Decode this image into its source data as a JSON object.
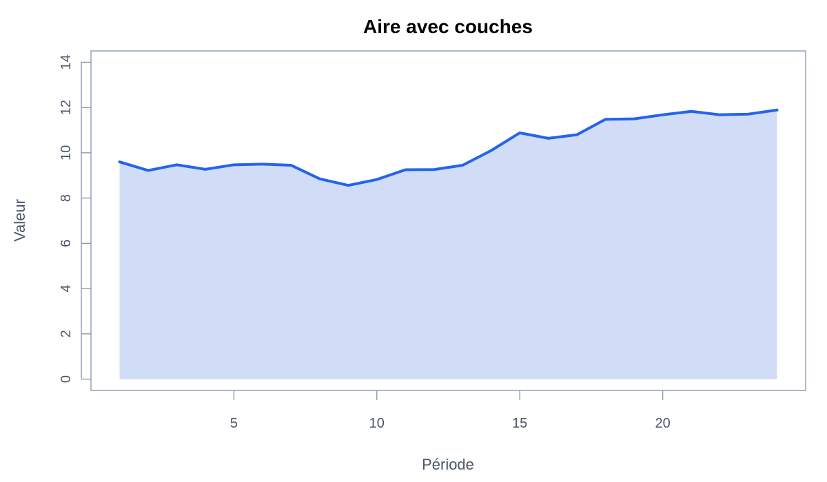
{
  "chart_data": {
    "type": "area",
    "title": "Aire avec couches",
    "xlabel": "Période",
    "ylabel": "Valeur",
    "xlim": [
      0,
      25
    ],
    "ylim": [
      -0.5,
      14.5
    ],
    "x_ticks": [
      5,
      10,
      15,
      20
    ],
    "y_ticks": [
      0,
      2,
      4,
      6,
      8,
      10,
      12,
      14
    ],
    "grid": false,
    "legend": "none",
    "colors": {
      "line": "#2563eb",
      "fill": "#d1dcf7",
      "frame": "#8c99b3"
    },
    "series": [
      {
        "x": [
          1,
          2,
          3,
          4,
          5,
          6,
          7,
          8,
          9,
          10,
          11,
          12,
          13,
          14,
          15,
          16,
          17,
          18,
          19,
          20,
          21,
          22,
          23,
          24
        ],
        "values": [
          9.6,
          9.22,
          9.47,
          9.27,
          9.47,
          9.5,
          9.45,
          8.85,
          8.56,
          8.82,
          9.25,
          9.26,
          9.45,
          10.1,
          10.88,
          10.64,
          10.8,
          11.48,
          11.5,
          11.68,
          11.83,
          11.68,
          11.71,
          11.89
        ]
      }
    ]
  }
}
